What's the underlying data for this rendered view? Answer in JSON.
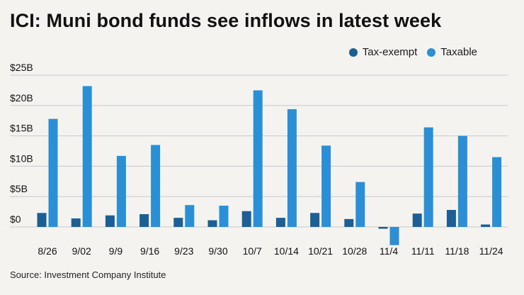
{
  "title": "ICI: Muni bond funds see inflows in latest week",
  "source": "Source: Investment Company Institute",
  "colors": {
    "tax_exempt": "#1b5f95",
    "taxable": "#2b8fd6",
    "grid": "#c9c9c9",
    "background": "#f4f3ef"
  },
  "chart_data": {
    "type": "bar",
    "title": "ICI: Muni bond funds see inflows in latest week",
    "xlabel": "",
    "ylabel": "",
    "ylim": [
      -3.5,
      25
    ],
    "yticks": [
      0,
      5,
      10,
      15,
      20,
      25
    ],
    "ytick_labels": [
      "$0",
      "$5B",
      "$10B",
      "$15B",
      "$20B",
      "$25B"
    ],
    "grid": true,
    "legend_position": "top-right",
    "categories": [
      "8/26",
      "9/02",
      "9/9",
      "9/16",
      "9/23",
      "9/30",
      "10/7",
      "10/14",
      "10/21",
      "10/28",
      "11/4",
      "11/11",
      "11/18",
      "11/24"
    ],
    "series": [
      {
        "name": "Tax-exempt",
        "values": [
          2.3,
          1.4,
          1.9,
          2.1,
          1.5,
          1.1,
          2.6,
          1.5,
          2.3,
          1.3,
          -0.3,
          2.2,
          2.8,
          0.4
        ]
      },
      {
        "name": "Taxable",
        "values": [
          17.8,
          23.2,
          11.7,
          13.5,
          3.6,
          3.5,
          22.5,
          19.4,
          13.4,
          7.4,
          -3.0,
          16.4,
          15.0,
          11.5
        ]
      }
    ]
  }
}
